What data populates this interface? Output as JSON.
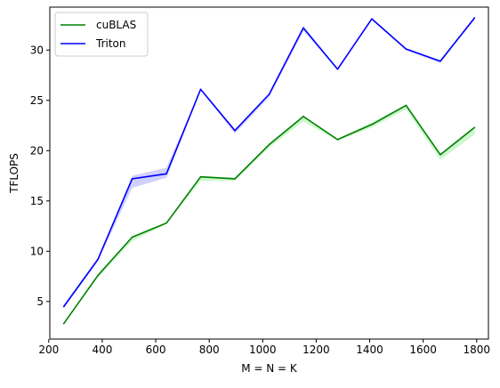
{
  "chart_data": {
    "type": "line",
    "title": "",
    "xlabel": "M = N = K",
    "ylabel": "TFLOPS",
    "xlim": [
      204,
      1844
    ],
    "ylim": [
      1.27,
      34.27
    ],
    "xticks": [
      200,
      400,
      600,
      800,
      1000,
      1200,
      1400,
      1600,
      1800
    ],
    "yticks": [
      5,
      10,
      15,
      20,
      25,
      30
    ],
    "grid": false,
    "legend_position": "upper-left",
    "x": [
      256,
      384,
      512,
      640,
      768,
      896,
      1024,
      1152,
      1280,
      1408,
      1536,
      1664,
      1792
    ],
    "series": [
      {
        "name": "cuBLAS",
        "color": "#008000",
        "band_color": "#90ee90",
        "values": [
          2.8,
          7.6,
          11.4,
          12.8,
          17.4,
          17.2,
          20.6,
          23.4,
          21.1,
          22.6,
          24.5,
          19.6,
          22.3
        ],
        "lower": [
          2.8,
          7.4,
          11.0,
          12.7,
          17.0,
          17.0,
          20.3,
          22.9,
          21.0,
          22.3,
          24.1,
          19.1,
          21.6
        ],
        "upper": [
          2.9,
          7.7,
          11.5,
          12.9,
          17.5,
          17.3,
          20.7,
          23.5,
          21.2,
          22.8,
          24.6,
          19.7,
          22.4
        ]
      },
      {
        "name": "Triton",
        "color": "#0000ff",
        "band_color": "#9999ff",
        "values": [
          4.5,
          9.2,
          17.2,
          17.7,
          26.1,
          22.0,
          25.6,
          32.2,
          28.1,
          33.1,
          30.1,
          28.9,
          33.2
        ],
        "lower": [
          4.3,
          9.0,
          16.3,
          17.3,
          26.0,
          21.7,
          25.3,
          31.9,
          28.0,
          33.0,
          30.0,
          28.7,
          33.0
        ],
        "upper": [
          4.6,
          9.3,
          17.5,
          18.3,
          26.1,
          22.1,
          25.7,
          32.4,
          28.1,
          33.1,
          30.2,
          29.0,
          33.3
        ]
      }
    ]
  }
}
